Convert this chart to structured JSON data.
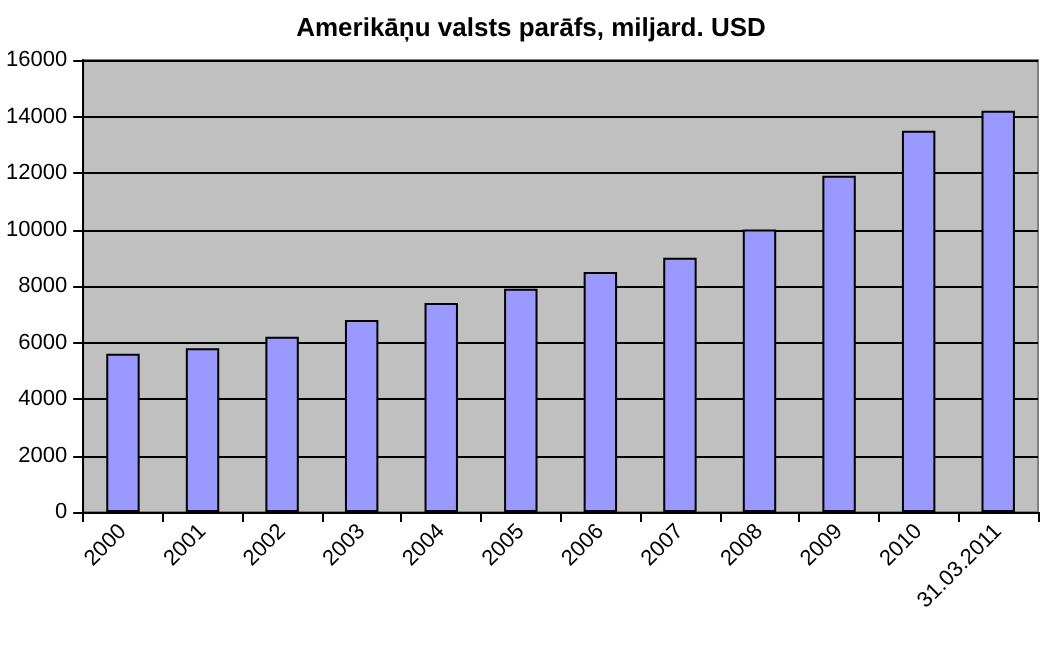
{
  "chart_data": {
    "type": "bar",
    "title": "Amerikāņu valsts parāfs, miljard. USD",
    "categories": [
      "2000",
      "2001",
      "2002",
      "2003",
      "2004",
      "2005",
      "2006",
      "2007",
      "2008",
      "2009",
      "2010",
      "31.03.2011"
    ],
    "values": [
      5600,
      5800,
      6200,
      6800,
      7400,
      7900,
      8500,
      9000,
      10000,
      11900,
      13500,
      14200
    ],
    "color": "#9999ff",
    "ylim": [
      0,
      16000
    ],
    "yticks": [
      0,
      2000,
      4000,
      6000,
      8000,
      10000,
      12000,
      14000,
      16000
    ],
    "grid": "y"
  }
}
